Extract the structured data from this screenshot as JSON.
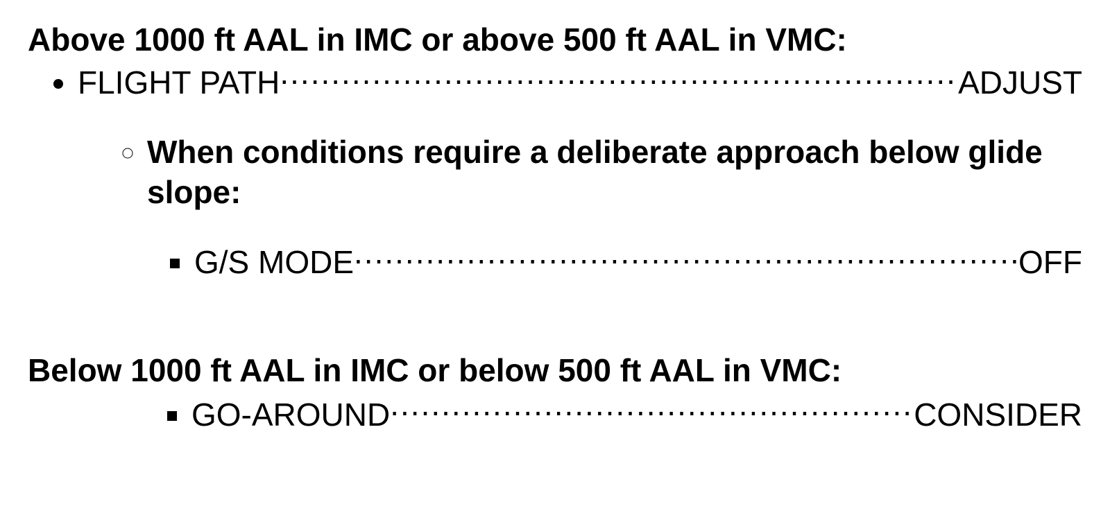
{
  "doc": {
    "background_color": "#ffffff",
    "text_color": "#000000",
    "font_family": "Arial, Helvetica, sans-serif",
    "base_font_size_pt": 34
  },
  "section1": {
    "heading": "Above 1000 ft AAL in IMC or above 500 ft AAL in VMC:",
    "item1": {
      "left": "FLIGHT PATH",
      "right": "ADJUST"
    },
    "subnote": "When conditions require a deliberate approach below glide slope:",
    "item2": {
      "left": "G/S MODE",
      "right": "OFF"
    }
  },
  "section2": {
    "heading": "Below 1000 ft AAL in IMC or below 500 ft AAL in VMC:",
    "item1": {
      "left": "GO-AROUND",
      "right": "CONSIDER"
    }
  }
}
